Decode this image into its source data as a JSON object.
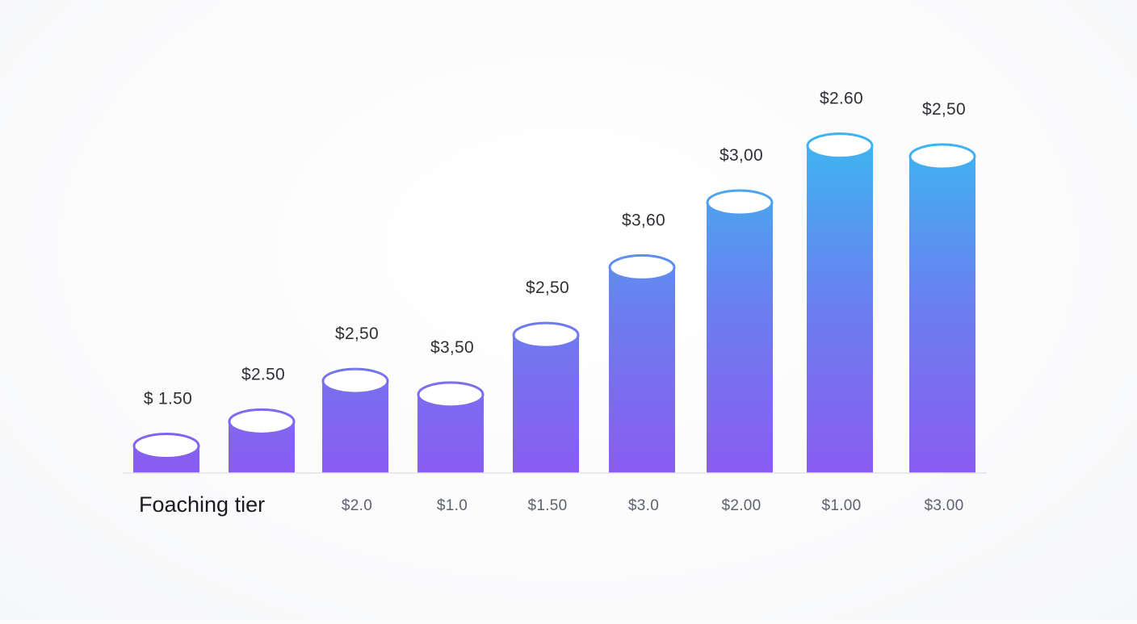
{
  "chart_data": {
    "type": "bar",
    "xlabel": "Foaching tier",
    "categories": [
      "",
      "",
      "$2.0",
      "$1.0",
      "$1.50",
      "$3.0",
      "$2.00",
      "$1.00",
      "$3.00"
    ],
    "values": [
      1.5,
      2.5,
      2.5,
      3.5,
      2.5,
      3.6,
      3.0,
      2.6,
      2.5
    ],
    "bar_heights": [
      1.0,
      1.9,
      3.4,
      2.9,
      5.1,
      7.6,
      10.0,
      12.1,
      11.7
    ],
    "data_labels": [
      "$ 1.50",
      "$2.50",
      "$2,50",
      "$3,50",
      "$2,50",
      "$3,60",
      "$3,00",
      "$2.60",
      "$2,50"
    ],
    "grid": false,
    "legend": "none",
    "colors": {
      "bar_bottom": "#8a5cf0",
      "bar_mid": "#6b7ef0",
      "bar_top": "#3fb3f0",
      "cap_fill": "#ffffff",
      "baseline": "#e2e3e8"
    }
  }
}
